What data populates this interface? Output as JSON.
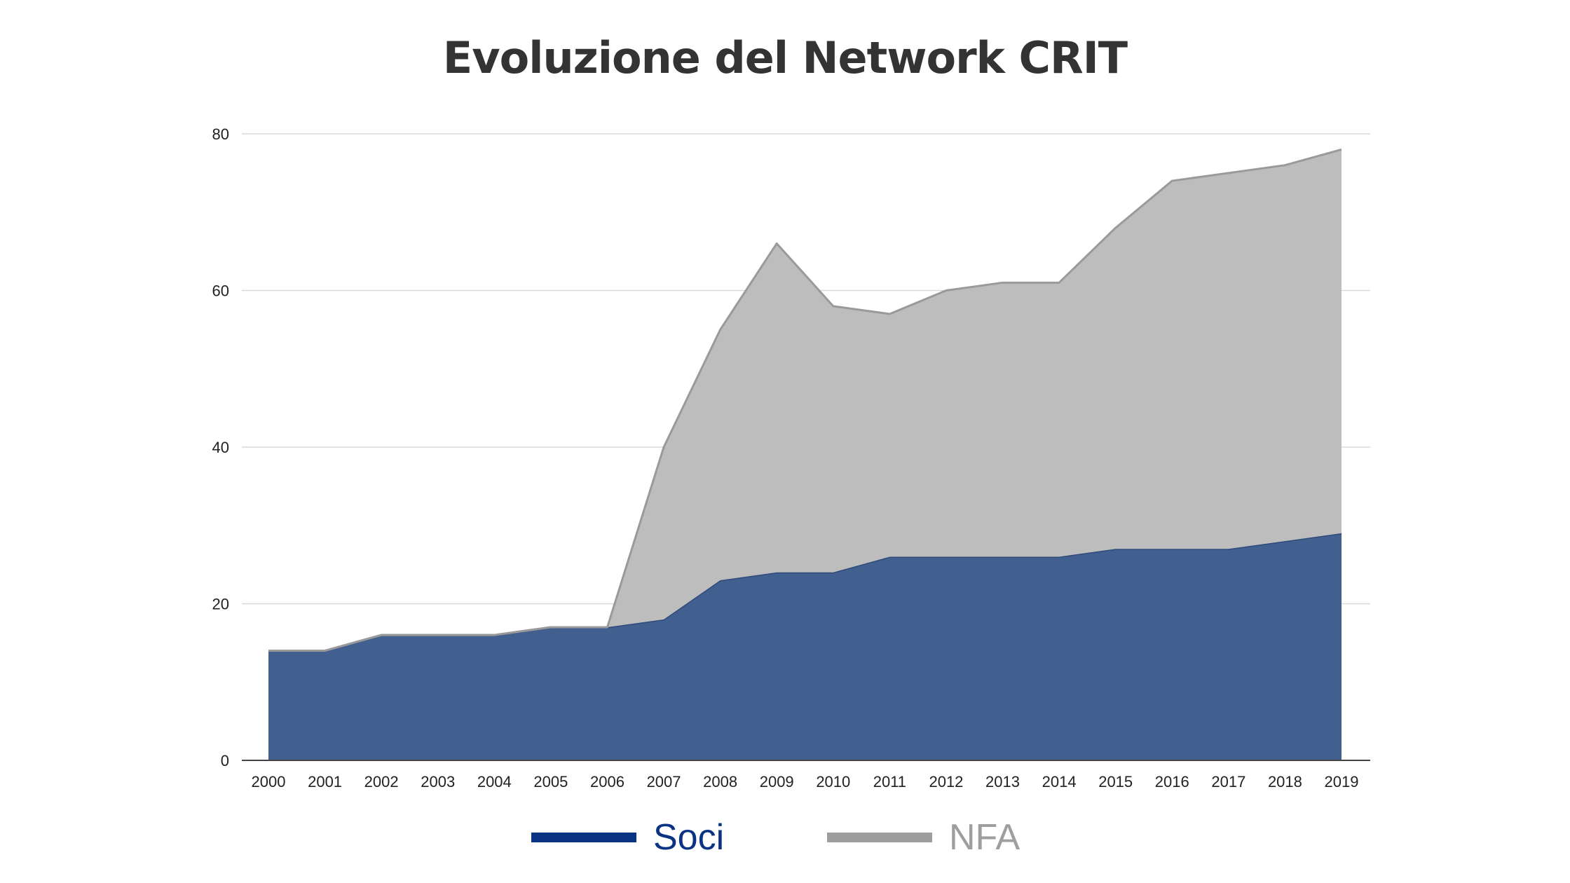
{
  "chart_data": {
    "type": "area",
    "stacked": true,
    "title": "Evoluzione del Network CRIT",
    "xlabel": "",
    "ylabel": "",
    "x": [
      "2000",
      "2001",
      "2002",
      "2003",
      "2004",
      "2005",
      "2006",
      "2007",
      "2008",
      "2009",
      "2010",
      "2011",
      "2012",
      "2013",
      "2014",
      "2015",
      "2016",
      "2017",
      "2018",
      "2019"
    ],
    "ylim": [
      0,
      80
    ],
    "yticks": [
      0,
      20,
      40,
      60,
      80
    ],
    "grid": true,
    "legend_position": "bottom",
    "series": [
      {
        "name": "Soci",
        "color": "#41608f",
        "legend_color": "#0b3384",
        "values": [
          14,
          14,
          16,
          16,
          16,
          17,
          17,
          18,
          23,
          24,
          24,
          26,
          26,
          26,
          26,
          27,
          27,
          27,
          28,
          29
        ]
      },
      {
        "name": "NFA",
        "color": "#bdbdbd",
        "legend_color": "#9e9e9e",
        "values": [
          0,
          0,
          0,
          0,
          0,
          0,
          0,
          22,
          32,
          42,
          34,
          31,
          34,
          35,
          35,
          41,
          47,
          48,
          48,
          49
        ]
      }
    ]
  }
}
